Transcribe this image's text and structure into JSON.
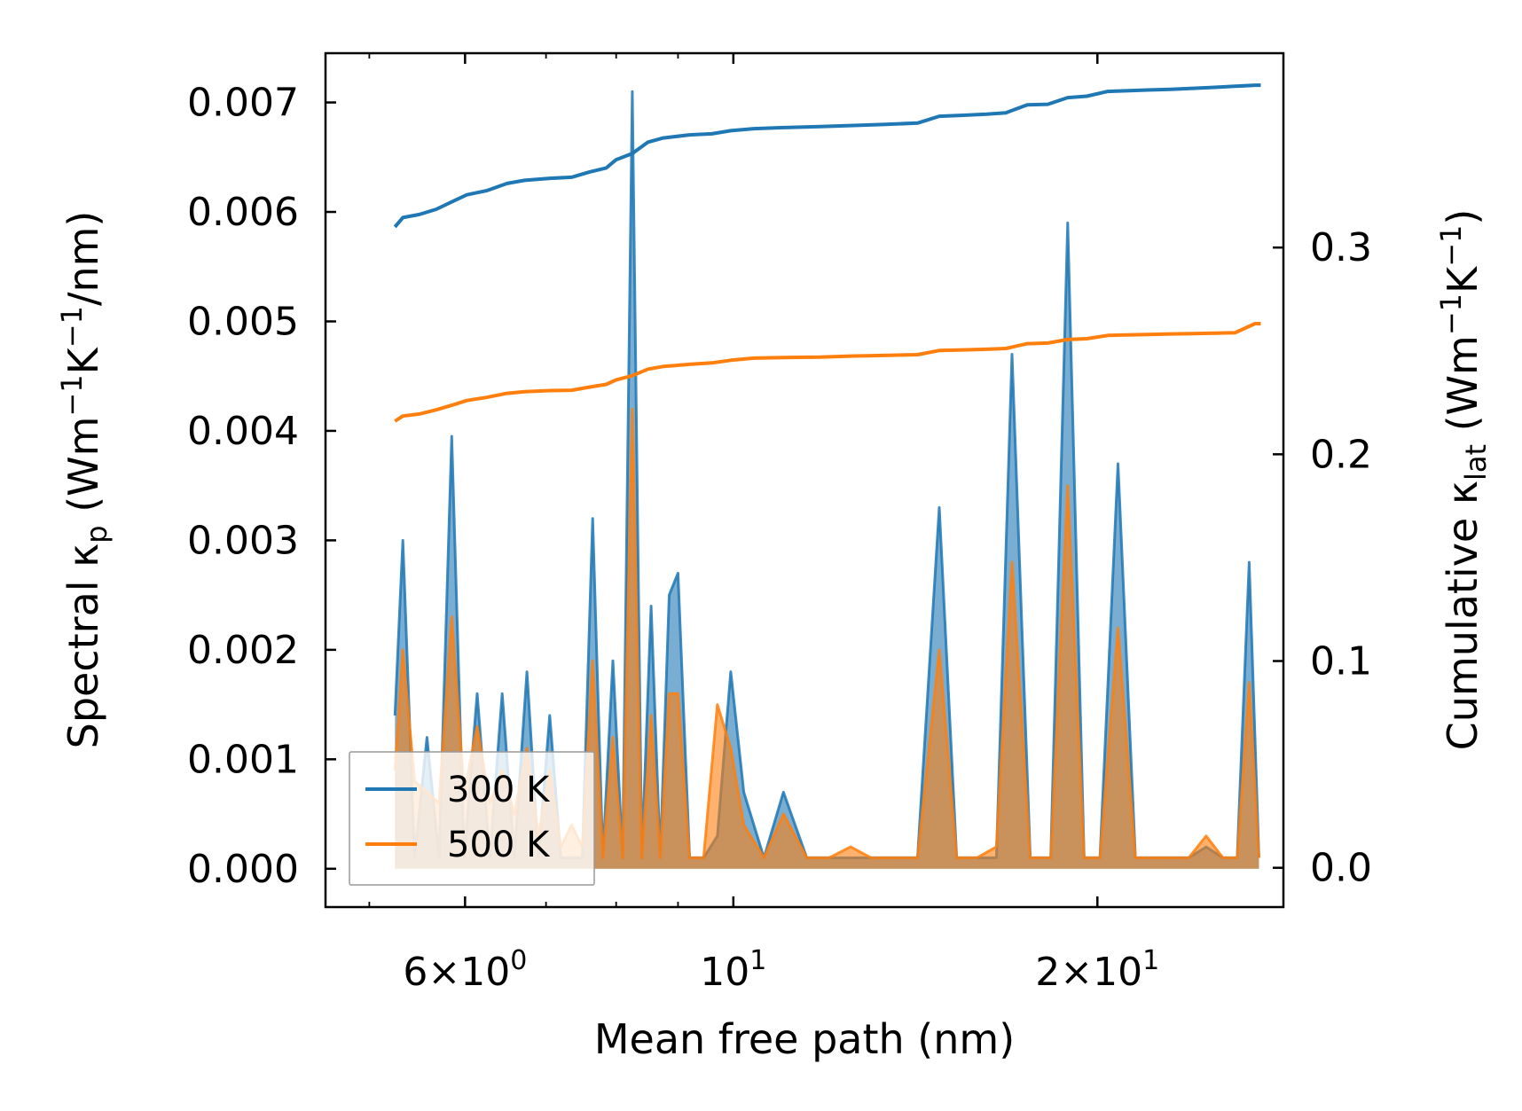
{
  "chart_data": {
    "type": "line",
    "xscale": "log",
    "xlabel": "Mean free path (nm)",
    "xlim": [
      4.6,
      28.5
    ],
    "xticks": [
      {
        "value": 6,
        "base": "6",
        "sep": "×",
        "mant": "10",
        "exp": "0"
      },
      {
        "value": 10,
        "base": "",
        "sep": "",
        "mant": "10",
        "exp": "1"
      },
      {
        "value": 20,
        "base": "2",
        "sep": "×",
        "mant": "10",
        "exp": "1"
      }
    ],
    "ylabel_left": {
      "pre": "Spectral κ",
      "sub": "p",
      "unit1": " (Wm",
      "e1": "−1",
      "unit2": "K",
      "e2": "−1",
      "unit3": "/nm)"
    },
    "ylim_left": [
      -0.00035,
      0.00745
    ],
    "yticks_left": [
      "0.000",
      "0.001",
      "0.002",
      "0.003",
      "0.004",
      "0.005",
      "0.006",
      "0.007"
    ],
    "ylabel_right": {
      "pre": "Cumulative κ",
      "sub": "lat",
      "unit1": " (Wm",
      "e1": "−1",
      "unit2": "K",
      "e2": "−1",
      "unit3": ")"
    },
    "ylim_right": [
      -0.019,
      0.394
    ],
    "yticks_right": [
      "0.0",
      "0.1",
      "0.2",
      "0.3"
    ],
    "legend": {
      "location": "lower-left",
      "entries": [
        "300 K",
        "500 K"
      ]
    },
    "series": [
      {
        "name": "300 K",
        "color": "#1f77b4",
        "cumulative": {
          "x": [
            5.25,
            5.33,
            5.5,
            5.68,
            5.87,
            6.02,
            6.25,
            6.5,
            6.72,
            7.05,
            7.35,
            7.6,
            7.85,
            8.0,
            8.25,
            8.5,
            8.75,
            9.2,
            9.6,
            9.95,
            10.4,
            11.0,
            11.8,
            12.5,
            13.3,
            14.2,
            14.8,
            15.5,
            16.2,
            16.8,
            17.5,
            18.2,
            18.9,
            19.6,
            20.4,
            21.1,
            22.0,
            23.0,
            24.0,
            25.0,
            26.0,
            27.0,
            27.3
          ],
          "y": [
            0.31,
            0.3145,
            0.316,
            0.3185,
            0.3225,
            0.3255,
            0.3275,
            0.331,
            0.3325,
            0.3335,
            0.334,
            0.3365,
            0.3385,
            0.3425,
            0.3455,
            0.351,
            0.353,
            0.3545,
            0.355,
            0.3565,
            0.3575,
            0.358,
            0.3585,
            0.359,
            0.3595,
            0.3602,
            0.3635,
            0.364,
            0.3645,
            0.3652,
            0.369,
            0.3693,
            0.3725,
            0.3732,
            0.3755,
            0.3758,
            0.3762,
            0.3765,
            0.377,
            0.3775,
            0.378,
            0.3785,
            0.3785
          ]
        },
        "spectral": {
          "x": [
            5.25,
            5.33,
            5.45,
            5.58,
            5.71,
            5.85,
            5.99,
            6.14,
            6.29,
            6.44,
            6.59,
            6.75,
            6.9,
            7.05,
            7.2,
            7.35,
            7.5,
            7.65,
            7.8,
            7.95,
            8.1,
            8.25,
            8.4,
            8.55,
            8.7,
            8.85,
            9.0,
            9.2,
            9.45,
            9.7,
            9.95,
            10.2,
            10.6,
            11.0,
            11.5,
            12.0,
            12.5,
            13.0,
            13.6,
            14.2,
            14.8,
            15.3,
            15.9,
            16.5,
            17.0,
            17.6,
            18.3,
            18.9,
            19.5,
            20.1,
            20.8,
            21.5,
            22.2,
            23.0,
            23.8,
            24.6,
            25.4,
            26.1,
            26.7,
            27.2
          ],
          "y": [
            0.0014,
            0.003,
            0.0001,
            0.0012,
            0.0001,
            0.00395,
            0.0001,
            0.0016,
            0.0001,
            0.0016,
            0.0001,
            0.0018,
            0.0001,
            0.0014,
            0.0001,
            0.0001,
            0.0001,
            0.0032,
            0.0001,
            0.0019,
            0.0001,
            0.0071,
            0.0001,
            0.0024,
            0.0001,
            0.0025,
            0.0027,
            0.0001,
            0.0001,
            0.0003,
            0.0018,
            0.0007,
            0.0001,
            0.0007,
            0.0001,
            0.0001,
            0.0001,
            0.0001,
            0.0001,
            0.0001,
            0.0033,
            0.0001,
            0.0001,
            0.0001,
            0.0047,
            0.0001,
            0.0001,
            0.0059,
            0.0001,
            0.0001,
            0.0037,
            0.0001,
            0.0001,
            0.0001,
            0.0001,
            0.0002,
            0.0001,
            0.0001,
            0.0028,
            0.0001
          ]
        }
      },
      {
        "name": "500 K",
        "color": "#ff7f0e",
        "cumulative": {
          "x": [
            5.25,
            5.33,
            5.5,
            5.68,
            5.87,
            6.02,
            6.25,
            6.5,
            6.72,
            7.05,
            7.35,
            7.6,
            7.85,
            8.0,
            8.25,
            8.5,
            8.75,
            9.2,
            9.6,
            9.95,
            10.4,
            11.0,
            11.8,
            12.5,
            13.3,
            14.2,
            14.8,
            15.5,
            16.2,
            16.8,
            17.5,
            18.2,
            18.9,
            19.6,
            20.4,
            21.1,
            22.0,
            23.0,
            24.0,
            25.0,
            26.0,
            27.0,
            27.3
          ],
          "y": [
            0.216,
            0.2185,
            0.2195,
            0.2215,
            0.224,
            0.226,
            0.2275,
            0.2295,
            0.2303,
            0.2308,
            0.231,
            0.2325,
            0.2338,
            0.236,
            0.238,
            0.2412,
            0.2425,
            0.2435,
            0.2442,
            0.2455,
            0.2465,
            0.2468,
            0.247,
            0.2475,
            0.2478,
            0.2482,
            0.2502,
            0.2505,
            0.2508,
            0.2512,
            0.2535,
            0.2538,
            0.2555,
            0.2559,
            0.2575,
            0.2577,
            0.2579,
            0.2582,
            0.2584,
            0.2586,
            0.2588,
            0.2632,
            0.2632
          ]
        },
        "spectral": {
          "x": [
            5.25,
            5.33,
            5.45,
            5.58,
            5.71,
            5.85,
            5.99,
            6.14,
            6.29,
            6.44,
            6.59,
            6.75,
            6.9,
            7.05,
            7.2,
            7.35,
            7.5,
            7.65,
            7.8,
            7.95,
            8.1,
            8.25,
            8.4,
            8.55,
            8.7,
            8.85,
            9.0,
            9.2,
            9.45,
            9.7,
            9.95,
            10.2,
            10.6,
            11.0,
            11.5,
            12.0,
            12.5,
            13.0,
            13.6,
            14.2,
            14.8,
            15.3,
            15.9,
            16.5,
            17.0,
            17.6,
            18.3,
            18.9,
            19.5,
            20.1,
            20.8,
            21.5,
            22.2,
            23.0,
            23.8,
            24.6,
            25.4,
            26.1,
            26.7,
            27.2
          ],
          "y": [
            0.0009,
            0.002,
            0.0008,
            0.0007,
            0.0006,
            0.0023,
            0.0007,
            0.0013,
            0.0006,
            0.0009,
            0.0005,
            0.0011,
            0.0003,
            0.0009,
            0.0002,
            0.0004,
            0.0002,
            0.0019,
            0.0001,
            0.0012,
            0.0001,
            0.0042,
            0.0001,
            0.0014,
            0.0001,
            0.0016,
            0.0016,
            0.0001,
            0.0001,
            0.0015,
            0.0011,
            0.0004,
            0.0001,
            0.0005,
            0.0001,
            0.0001,
            0.0002,
            0.0001,
            0.0001,
            0.0001,
            0.002,
            0.0001,
            0.0001,
            0.0002,
            0.0028,
            0.0001,
            0.0001,
            0.0035,
            0.0001,
            0.0001,
            0.0022,
            0.0001,
            0.0001,
            0.0001,
            0.0001,
            0.0003,
            0.0001,
            0.0001,
            0.0017,
            0.0001
          ]
        }
      }
    ]
  }
}
